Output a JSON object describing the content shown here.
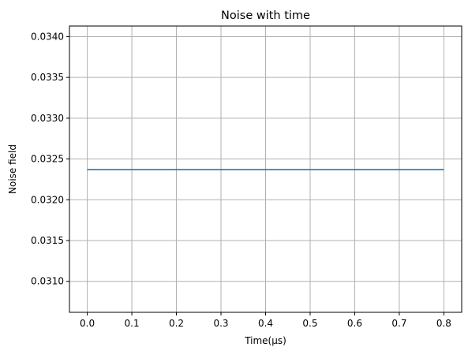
{
  "chart_data": {
    "type": "line",
    "title": "Noise with time",
    "xlabel": "Time(μs)",
    "ylabel": "Noise field",
    "xlim": [
      -0.04,
      0.84
    ],
    "ylim": [
      0.03062,
      0.03413
    ],
    "xticks": [
      0.0,
      0.1,
      0.2,
      0.3,
      0.4,
      0.5,
      0.6,
      0.7,
      0.8
    ],
    "xtick_labels": [
      "0.0",
      "0.1",
      "0.2",
      "0.3",
      "0.4",
      "0.5",
      "0.6",
      "0.7",
      "0.8"
    ],
    "yticks": [
      0.031,
      0.0315,
      0.032,
      0.0325,
      0.033,
      0.0335,
      0.034
    ],
    "ytick_labels": [
      "0.0310",
      "0.0315",
      "0.0320",
      "0.0325",
      "0.0330",
      "0.0335",
      "0.0340"
    ],
    "grid": true,
    "series": [
      {
        "color": "#1f77b4",
        "x": [
          0.0,
          0.1,
          0.2,
          0.3,
          0.4,
          0.5,
          0.6,
          0.7,
          0.8
        ],
        "y": [
          0.03237,
          0.03237,
          0.03237,
          0.03237,
          0.03237,
          0.03237,
          0.03237,
          0.03237,
          0.03237
        ]
      }
    ]
  }
}
